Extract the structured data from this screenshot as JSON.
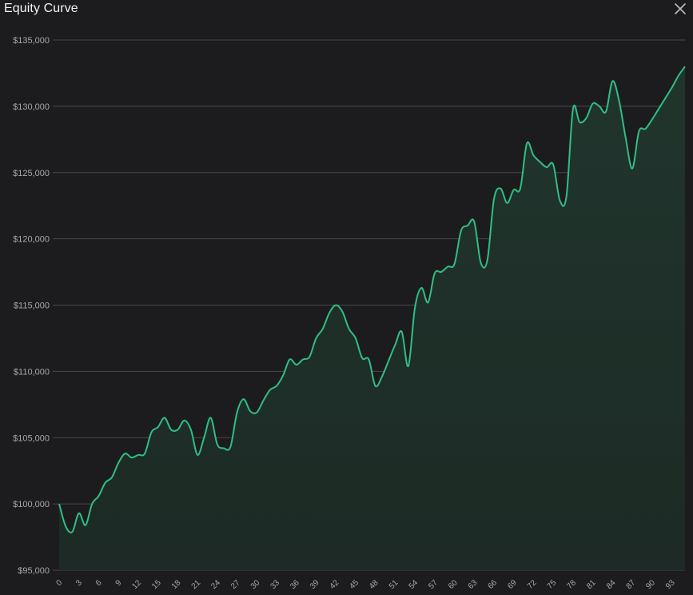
{
  "panel": {
    "title": "Equity Curve",
    "close_icon": "close-icon"
  },
  "colors": {
    "background": "#1c1c1e",
    "line": "#2fbf85",
    "fill": "#1f2d28",
    "grid": "#48484c",
    "tick_text": "#a8a8ad"
  },
  "chart_data": {
    "type": "area",
    "title": "Equity Curve",
    "xlabel": "",
    "ylabel": "",
    "xlim": [
      0,
      95
    ],
    "ylim": [
      95000,
      135000
    ],
    "grid": "horizontal",
    "y_ticks": [
      {
        "value": 95000,
        "label": "$95,000"
      },
      {
        "value": 100000,
        "label": "$100,000"
      },
      {
        "value": 105000,
        "label": "$105,000"
      },
      {
        "value": 110000,
        "label": "$110,000"
      },
      {
        "value": 115000,
        "label": "$115,000"
      },
      {
        "value": 120000,
        "label": "$120,000"
      },
      {
        "value": 125000,
        "label": "$125,000"
      },
      {
        "value": 130000,
        "label": "$130,000"
      },
      {
        "value": 135000,
        "label": "$135,000"
      }
    ],
    "x_ticks": [
      {
        "value": 0,
        "label": "0"
      },
      {
        "value": 3,
        "label": "3"
      },
      {
        "value": 6,
        "label": "6"
      },
      {
        "value": 9,
        "label": "9"
      },
      {
        "value": 12,
        "label": "12"
      },
      {
        "value": 15,
        "label": "15"
      },
      {
        "value": 18,
        "label": "18"
      },
      {
        "value": 21,
        "label": "21"
      },
      {
        "value": 24,
        "label": "24"
      },
      {
        "value": 27,
        "label": "27"
      },
      {
        "value": 30,
        "label": "30"
      },
      {
        "value": 33,
        "label": "33"
      },
      {
        "value": 36,
        "label": "36"
      },
      {
        "value": 39,
        "label": "39"
      },
      {
        "value": 42,
        "label": "42"
      },
      {
        "value": 45,
        "label": "45"
      },
      {
        "value": 48,
        "label": "48"
      },
      {
        "value": 51,
        "label": "51"
      },
      {
        "value": 54,
        "label": "54"
      },
      {
        "value": 57,
        "label": "57"
      },
      {
        "value": 60,
        "label": "60"
      },
      {
        "value": 63,
        "label": "63"
      },
      {
        "value": 66,
        "label": "66"
      },
      {
        "value": 69,
        "label": "69"
      },
      {
        "value": 72,
        "label": "72"
      },
      {
        "value": 75,
        "label": "75"
      },
      {
        "value": 78,
        "label": "78"
      },
      {
        "value": 81,
        "label": "81"
      },
      {
        "value": 84,
        "label": "84"
      },
      {
        "value": 87,
        "label": "87"
      },
      {
        "value": 90,
        "label": "90"
      },
      {
        "value": 93,
        "label": "93"
      }
    ],
    "series": [
      {
        "x": [
          0,
          1,
          2,
          3,
          4,
          5,
          6,
          7,
          8,
          9,
          10,
          11,
          12,
          13,
          14,
          15,
          16,
          17,
          18,
          19,
          20,
          21,
          22,
          23,
          24,
          25,
          26,
          27,
          28,
          29,
          30,
          31,
          32,
          33,
          34,
          35,
          36,
          37,
          38,
          39,
          40,
          41,
          42,
          43,
          44,
          45,
          46,
          47,
          48,
          49,
          50,
          51,
          52,
          53,
          54,
          55,
          56,
          57,
          58,
          59,
          60,
          61,
          62,
          63,
          64,
          65,
          66,
          67,
          68,
          69,
          70,
          71,
          72,
          73,
          74,
          75,
          76,
          77,
          78,
          79,
          80,
          81,
          82,
          83,
          84,
          85,
          86,
          87,
          88,
          89,
          90,
          91,
          92,
          93,
          94,
          95
        ],
        "values": [
          100000,
          98300,
          97900,
          99300,
          98400,
          100000,
          100600,
          101600,
          102000,
          103100,
          103800,
          103500,
          103700,
          103800,
          105400,
          105800,
          106500,
          105600,
          105600,
          106300,
          105600,
          103700,
          105000,
          106500,
          104500,
          104200,
          104300,
          106900,
          107900,
          107000,
          106900,
          107800,
          108600,
          108900,
          109700,
          110900,
          110500,
          110900,
          111100,
          112500,
          113200,
          114400,
          115000,
          114500,
          113200,
          112500,
          111000,
          110900,
          108900,
          109600,
          110800,
          112000,
          113000,
          110400,
          114800,
          116300,
          115200,
          117400,
          117500,
          117900,
          118100,
          120600,
          121000,
          121300,
          118200,
          118400,
          123000,
          123800,
          122700,
          123700,
          123800,
          127200,
          126300,
          125800,
          125400,
          125600,
          122900,
          123200,
          129800,
          128800,
          129100,
          130200,
          130000,
          129600,
          131900,
          130400,
          127600,
          125300,
          128100,
          128300,
          129000,
          129800,
          130600,
          131400,
          132300,
          133000
        ]
      }
    ]
  }
}
